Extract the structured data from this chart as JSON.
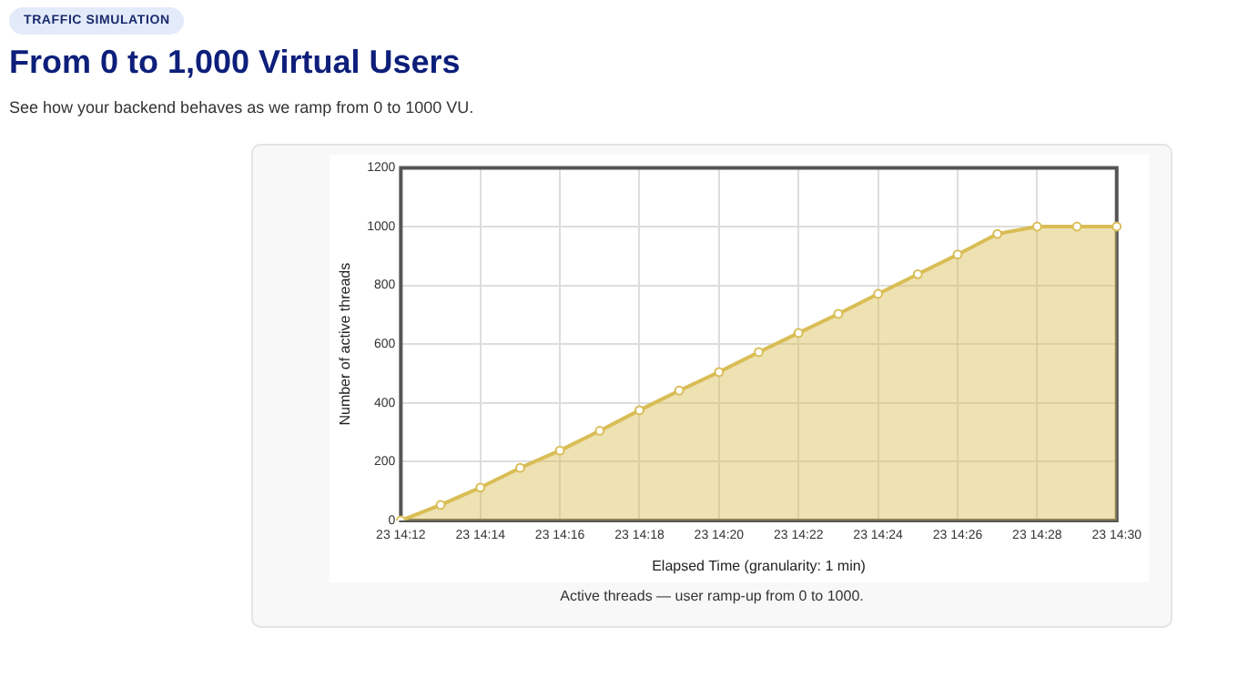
{
  "chart_data": {
    "type": "area",
    "title": "From 0 to 1,000 Virtual Users",
    "subtitle": "See how your backend behaves as we ramp from 0 to 1000 VU.",
    "xlabel": "Elapsed Time (granularity: 1 min)",
    "ylabel": "Number of active threads",
    "annotations": [
      "TRAFFIC SIMULATION",
      "Active threads — user ramp-up from 0 to 1000."
    ],
    "categories": [
      "23 14:12",
      null,
      "23 14:14",
      null,
      "23 14:16",
      null,
      "23 14:18",
      null,
      "23 14:20",
      null,
      "23 14:22",
      null,
      "23 14:24",
      null,
      "23 14:26",
      null,
      "23 14:28",
      null,
      "23 14:30"
    ],
    "series": [
      {
        "color": "#d9bd55",
        "values": [
          0,
          53,
          112,
          179,
          238,
          305,
          375,
          442,
          505,
          573,
          638,
          703,
          771,
          838,
          905,
          975,
          1000,
          1000,
          1000
        ]
      }
    ],
    "ylim": [
      0,
      1200
    ],
    "yticks": [
      0,
      200,
      400,
      600,
      800,
      1000,
      1200
    ],
    "grid": true,
    "legend": false,
    "marker": "circle",
    "line_style": "solid"
  }
}
